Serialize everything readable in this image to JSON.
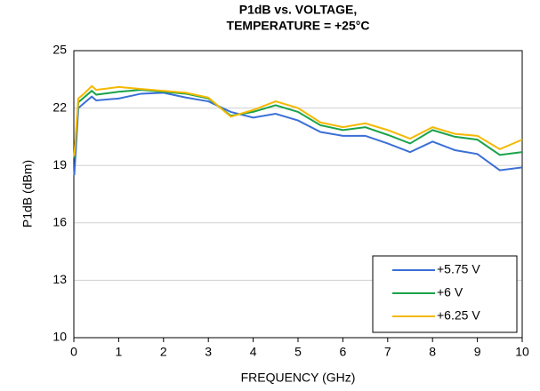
{
  "chart_data": {
    "type": "line",
    "title": [
      "P1dB vs. VOLTAGE,",
      "TEMPERATURE = +25°C"
    ],
    "x_label": "FREQUENCY (GHz)",
    "y_label": "P1dB (dBm)",
    "x": [
      0.01,
      0.1,
      0.25,
      0.4,
      0.5,
      1,
      1.5,
      2,
      2.5,
      3,
      3.5,
      4,
      4.5,
      5,
      5.5,
      6,
      6.5,
      7,
      7.5,
      8,
      8.5,
      9,
      9.5,
      10
    ],
    "series": [
      {
        "name": "+5.75 V",
        "color": "#3b6fd6",
        "values": [
          18.5,
          22.0,
          22.3,
          22.6,
          22.4,
          22.5,
          22.75,
          22.8,
          22.55,
          22.35,
          21.8,
          21.5,
          21.7,
          21.35,
          20.75,
          20.55,
          20.55,
          20.15,
          19.7,
          20.25,
          19.8,
          19.6,
          18.75,
          18.9
        ]
      },
      {
        "name": "+6 V",
        "color": "#1aa34a",
        "values": [
          19.4,
          22.3,
          22.6,
          22.9,
          22.7,
          22.85,
          22.95,
          22.85,
          22.75,
          22.5,
          21.6,
          21.8,
          22.15,
          21.8,
          21.1,
          20.85,
          21.0,
          20.6,
          20.15,
          20.85,
          20.5,
          20.35,
          19.55,
          19.7
        ]
      },
      {
        "name": "+6.25 V",
        "color": "#f5b800",
        "values": [
          19.5,
          22.5,
          22.8,
          23.15,
          22.95,
          23.1,
          23.0,
          22.9,
          22.8,
          22.55,
          21.55,
          21.9,
          22.35,
          22.0,
          21.25,
          21.0,
          21.2,
          20.85,
          20.4,
          21.0,
          20.65,
          20.55,
          19.85,
          20.35
        ]
      }
    ],
    "xlim": [
      0,
      10
    ],
    "xticks": [
      0,
      1,
      2,
      3,
      4,
      5,
      6,
      7,
      8,
      9,
      10
    ],
    "ylim": [
      10,
      25
    ],
    "yticks": [
      10,
      13,
      16,
      19,
      22,
      25
    ],
    "grid": true,
    "legend": "lower right"
  }
}
